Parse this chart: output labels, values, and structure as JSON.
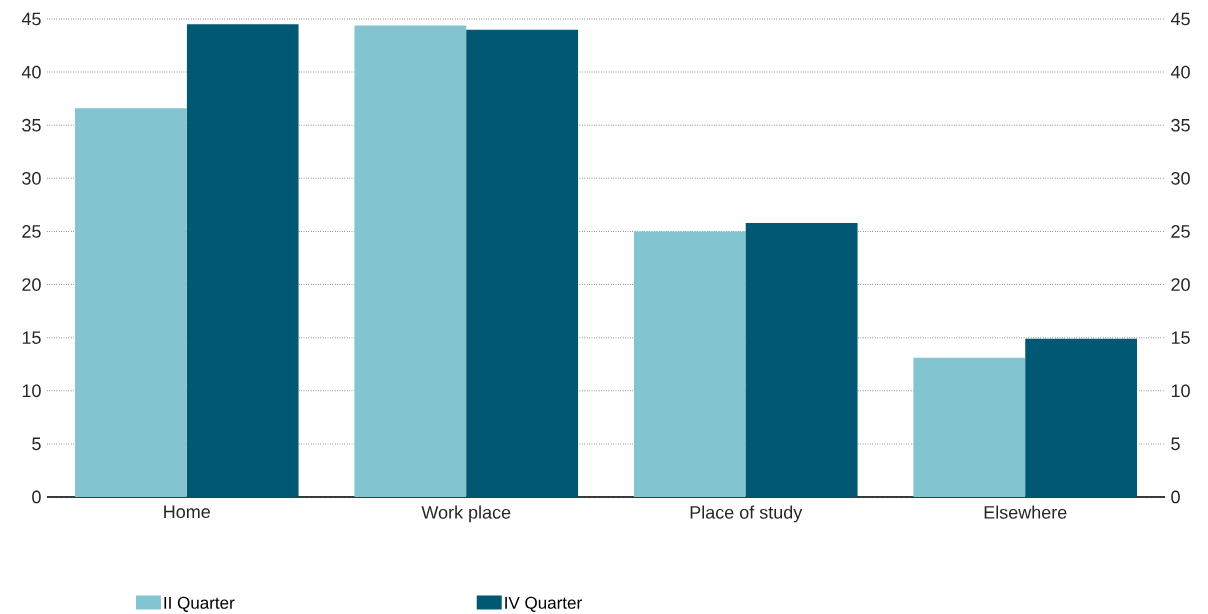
{
  "chart_data": {
    "type": "bar",
    "categories": [
      "Home",
      "Work place",
      "Place of study",
      "Elsewhere"
    ],
    "series": [
      {
        "name": "II Quarter",
        "color": "#82c5d0",
        "values": [
          36.6,
          44.4,
          25.0,
          13.1
        ]
      },
      {
        "name": "IV Quarter",
        "color": "#005872",
        "values": [
          44.5,
          44.0,
          25.8,
          14.9
        ]
      }
    ],
    "ylim": [
      0,
      45
    ],
    "yticks": [
      0,
      5,
      10,
      15,
      20,
      25,
      30,
      35,
      40,
      45
    ],
    "y2lim": [
      0,
      45
    ],
    "y2ticks": [
      0,
      5,
      10,
      15,
      20,
      25,
      30,
      35,
      40,
      45
    ],
    "grid": "y",
    "legend": "bottom"
  }
}
